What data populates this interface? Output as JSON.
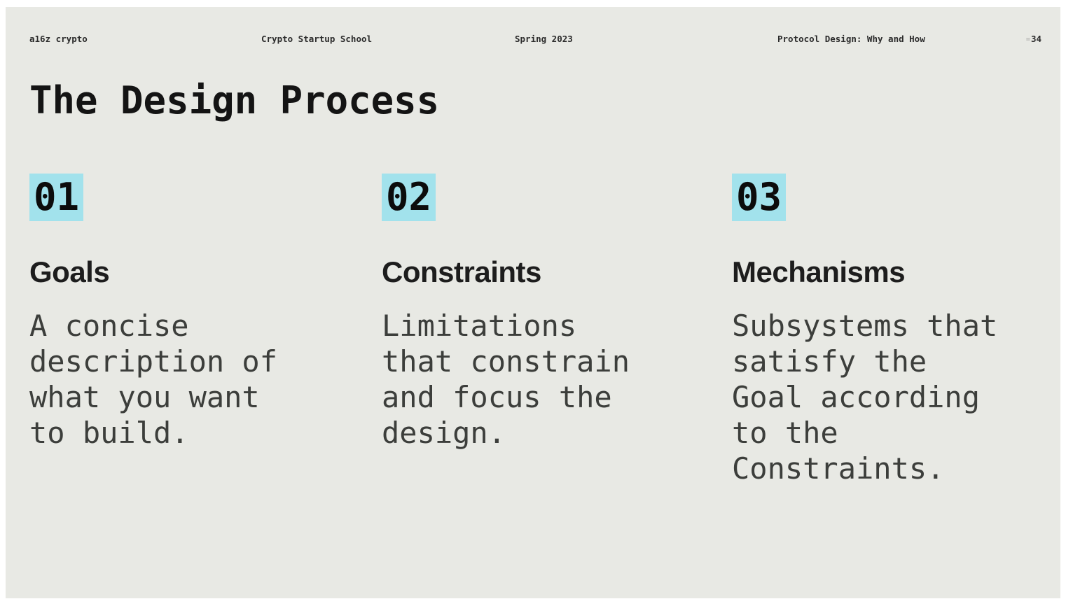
{
  "slide": {
    "header": {
      "brand": "a16z crypto",
      "program": "Crypto Startup School",
      "term": "Spring 2023",
      "lecture": "Protocol Design: Why and How",
      "page_prefix": "=",
      "page_number": "34"
    },
    "title": "The Design Process",
    "columns": [
      {
        "number": "01",
        "heading": "Goals",
        "body": "A concise\ndescription of\nwhat you want\nto build."
      },
      {
        "number": "02",
        "heading": "Constraints",
        "body": "Limitations\nthat constrain\nand focus the\ndesign."
      },
      {
        "number": "03",
        "heading": "Mechanisms",
        "body": "Subsystems that\nsatisfy the\nGoal according\nto the\nConstraints."
      }
    ],
    "colors": {
      "highlight": "#a2e2ec",
      "slide_background": "#e8e9e4",
      "frame_background": "#ffffff",
      "title_text": "#141414",
      "body_text": "#3c3e3b"
    }
  }
}
